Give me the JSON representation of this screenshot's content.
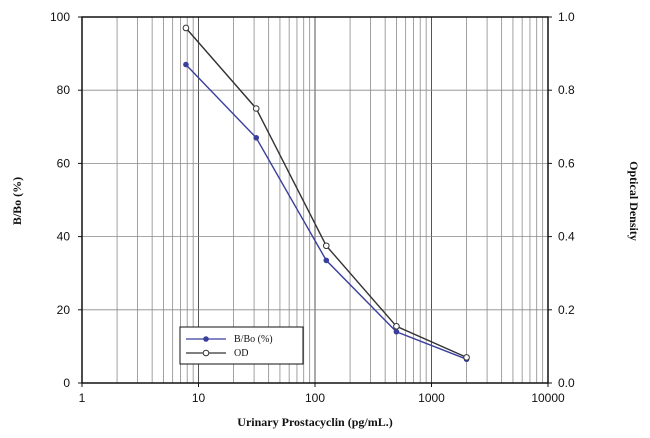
{
  "chart_data": {
    "type": "line",
    "title": "",
    "xlabel": "Urinary Prostacyclin (pg/mL.)",
    "ylabel": "B/Bo (%)",
    "ylabel_right": "Optical Density",
    "x_scale": "log",
    "xlim": [
      1,
      10000
    ],
    "ylim": [
      0,
      100
    ],
    "ylim_right": [
      0,
      1.0
    ],
    "x_ticks": [
      "1",
      "10",
      "100",
      "1000",
      "10000"
    ],
    "y_ticks": [
      "0",
      "20",
      "40",
      "60",
      "80",
      "100"
    ],
    "y_ticks_right": [
      "0.0",
      "0.2",
      "0.4",
      "0.6",
      "0.8",
      "1.0"
    ],
    "grid": true,
    "legend_position": "bottom-left",
    "series": [
      {
        "name": "B/Bo (%)",
        "axis": "left",
        "color": "#3a3f9c",
        "marker": "filled-diamond",
        "x": [
          7.8,
          31.3,
          125,
          500,
          2000
        ],
        "y": [
          87,
          67,
          33.5,
          14,
          6.5
        ]
      },
      {
        "name": "OD",
        "axis": "right",
        "color": "#333333",
        "marker": "open-circle",
        "x": [
          7.8,
          31.3,
          125,
          500,
          2000
        ],
        "y": [
          0.97,
          0.75,
          0.375,
          0.155,
          0.07
        ]
      }
    ]
  }
}
